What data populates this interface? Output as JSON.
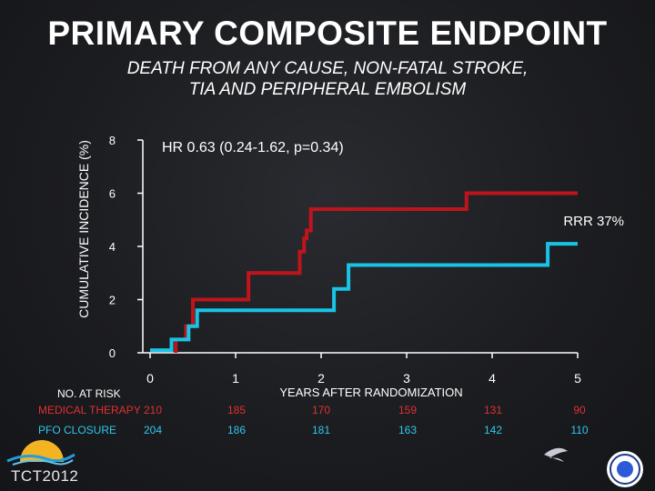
{
  "title": "PRIMARY COMPOSITE ENDPOINT",
  "subtitle_line1": "DEATH FROM ANY CAUSE, NON-FATAL STROKE,",
  "subtitle_line2": "TIA AND PERIPHERAL EMBOLISM",
  "chart_data": {
    "type": "line",
    "ylabel": "CUMULATIVE INCIDENCE (%)",
    "xlabel": "YEARS AFTER RANDOMIZATION",
    "ylim": [
      0,
      8
    ],
    "xlim": [
      0,
      5
    ],
    "y_ticks": [
      "0",
      "2",
      "4",
      "6",
      "8"
    ],
    "x_ticks": [
      "0",
      "1",
      "2",
      "3",
      "4",
      "5"
    ],
    "annotations": [
      "HR 0.63 (0.24-1.62, p=0.34)",
      "RRR 37%"
    ],
    "series": [
      {
        "color": "#c0141c",
        "step": true,
        "points": [
          [
            0.3,
            0.0
          ],
          [
            0.3,
            0.5
          ],
          [
            0.42,
            0.5
          ],
          [
            0.42,
            1.0
          ],
          [
            0.5,
            1.0
          ],
          [
            0.5,
            2.0
          ],
          [
            1.15,
            2.0
          ],
          [
            1.15,
            3.0
          ],
          [
            1.75,
            3.0
          ],
          [
            1.75,
            3.8
          ],
          [
            1.8,
            3.8
          ],
          [
            1.8,
            4.3
          ],
          [
            1.83,
            4.3
          ],
          [
            1.83,
            4.6
          ],
          [
            1.88,
            4.6
          ],
          [
            1.88,
            5.4
          ],
          [
            3.7,
            5.4
          ],
          [
            3.7,
            6.0
          ],
          [
            5.0,
            6.0
          ]
        ]
      },
      {
        "color": "#19c3e6",
        "step": true,
        "points": [
          [
            0.0,
            0.1
          ],
          [
            0.25,
            0.1
          ],
          [
            0.25,
            0.5
          ],
          [
            0.45,
            0.5
          ],
          [
            0.45,
            1.0
          ],
          [
            0.55,
            1.0
          ],
          [
            0.55,
            1.6
          ],
          [
            2.15,
            1.6
          ],
          [
            2.15,
            2.4
          ],
          [
            2.32,
            2.4
          ],
          [
            2.32,
            3.3
          ],
          [
            4.65,
            3.3
          ],
          [
            4.65,
            4.1
          ],
          [
            5.0,
            4.1
          ]
        ]
      }
    ]
  },
  "risk_table": {
    "title": "NO. AT RISK",
    "rows": [
      {
        "label": "MEDICAL THERAPY",
        "color": "#e03030",
        "values": [
          "210",
          "185",
          "170",
          "159",
          "131",
          "90"
        ]
      },
      {
        "label": "PFO CLOSURE",
        "color": "#2ec8e8",
        "values": [
          "204",
          "186",
          "181",
          "163",
          "142",
          "110"
        ]
      }
    ]
  },
  "logo_text": "TCT2012"
}
